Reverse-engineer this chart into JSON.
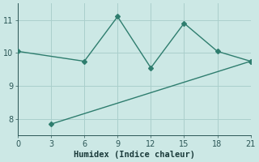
{
  "line1_x": [
    0,
    6,
    9,
    12,
    15,
    18,
    21
  ],
  "line1_y": [
    10.05,
    9.75,
    11.1,
    9.55,
    10.9,
    10.05,
    9.75
  ],
  "line2_x": [
    3,
    21
  ],
  "line2_y": [
    7.85,
    9.75
  ],
  "color": "#2e7d6e",
  "bg_color": "#cce8e5",
  "grid_color": "#aacfcc",
  "xlabel": "Humidex (Indice chaleur)",
  "xlim": [
    0,
    21
  ],
  "ylim": [
    7.5,
    11.5
  ],
  "xticks": [
    0,
    3,
    6,
    9,
    12,
    15,
    18,
    21
  ],
  "yticks": [
    8,
    9,
    10,
    11
  ],
  "marker": "D",
  "markersize": 3,
  "linewidth": 1.0
}
